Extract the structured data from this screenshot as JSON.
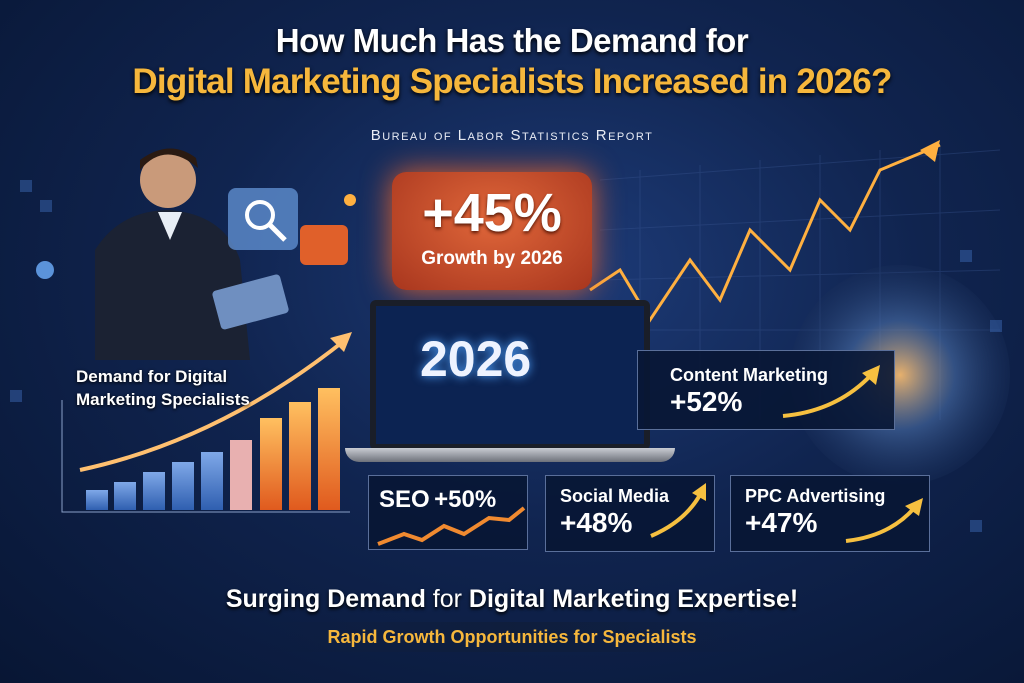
{
  "title": {
    "line1": "How Much Has the Demand for",
    "line2": "Digital Marketing Specialists Increased in 2026?"
  },
  "subtitle": "Bureau of Labor Statistics Report",
  "callout": {
    "value": "+45%",
    "label": "Growth by 2026"
  },
  "laptop": {
    "year": "2026"
  },
  "demand_label": {
    "line1": "Demand for Digital",
    "line2": "Marketing Specialists"
  },
  "stats": [
    {
      "label": "Content Marketing",
      "value": "+52%"
    },
    {
      "label": "SEO",
      "value": "+50%"
    },
    {
      "label": "Social Media",
      "value": "+48%"
    },
    {
      "label": "PPC Advertising",
      "value": "+47%"
    }
  ],
  "footer": {
    "headline_a": "Surging Demand",
    "headline_b": " for ",
    "headline_c": "Digital Marketing Expertise!",
    "tagline": "Rapid Growth Opportunities for Specialists"
  },
  "colors": {
    "accent": "#f6b73c",
    "orange": "#e0673a",
    "background": "#0b1a3a"
  }
}
